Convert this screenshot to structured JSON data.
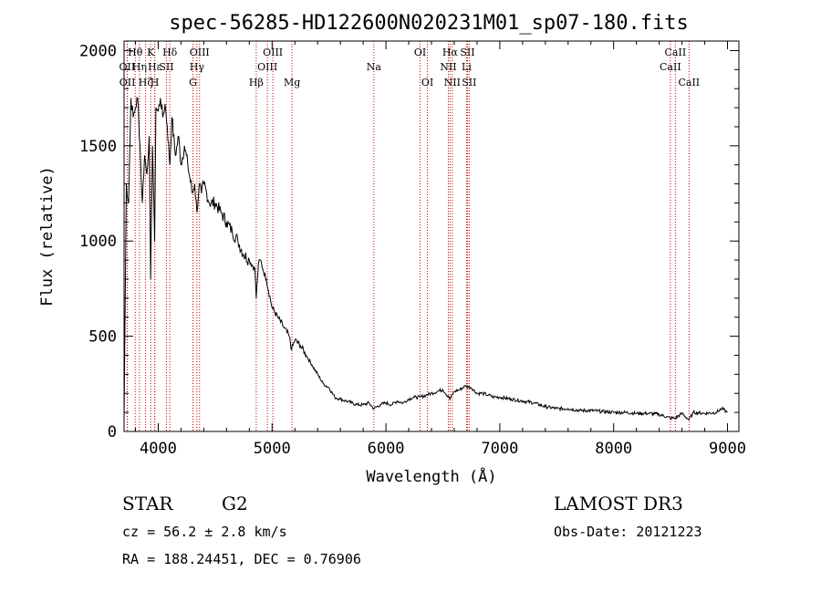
{
  "chart_data": {
    "type": "line",
    "title": "spec-56285-HD122600N020231M01_sp07-180.fits",
    "xlabel": "Wavelength (Å)",
    "ylabel": "Flux (relative)",
    "xlim": [
      3700,
      9100
    ],
    "ylim": [
      0,
      2050
    ],
    "xticks": [
      4000,
      5000,
      6000,
      7000,
      8000,
      9000
    ],
    "yticks": [
      0,
      500,
      1000,
      1500,
      2000
    ],
    "grid": false,
    "series": [
      {
        "x": [
          3700,
          3720,
          3740,
          3760,
          3780,
          3800,
          3820,
          3840,
          3860,
          3880,
          3900,
          3920,
          3933,
          3950,
          3968,
          3980,
          4000,
          4020,
          4040,
          4060,
          4080,
          4102,
          4120,
          4150,
          4180,
          4200,
          4230,
          4260,
          4300,
          4320,
          4340,
          4360,
          4380,
          4400,
          4450,
          4500,
          4550,
          4600,
          4650,
          4700,
          4750,
          4800,
          4850,
          4861,
          4880,
          4900,
          4920,
          4950,
          5000,
          5050,
          5100,
          5150,
          5172,
          5200,
          5250,
          5300,
          5350,
          5400,
          5450,
          5500,
          5550,
          5600,
          5650,
          5700,
          5750,
          5800,
          5850,
          5893,
          5950,
          6000,
          6050,
          6100,
          6150,
          6200,
          6250,
          6300,
          6350,
          6400,
          6450,
          6500,
          6563,
          6600,
          6650,
          6700,
          6750,
          6800,
          6850,
          6900,
          6950,
          7000,
          7100,
          7200,
          7300,
          7400,
          7500,
          7600,
          7700,
          7800,
          7900,
          8000,
          8100,
          8200,
          8300,
          8400,
          8498,
          8542,
          8600,
          8662,
          8700,
          8800,
          8900,
          8950,
          9000
        ],
        "y": [
          50,
          1300,
          1200,
          1750,
          1650,
          1700,
          1750,
          1500,
          1200,
          1450,
          1350,
          1550,
          800,
          1500,
          1000,
          1700,
          1680,
          1750,
          1650,
          1720,
          1600,
          1400,
          1650,
          1450,
          1550,
          1400,
          1500,
          1400,
          1250,
          1300,
          1150,
          1300,
          1250,
          1300,
          1200,
          1200,
          1150,
          1100,
          1050,
          1000,
          930,
          900,
          850,
          700,
          880,
          900,
          850,
          800,
          650,
          600,
          550,
          500,
          430,
          480,
          450,
          400,
          350,
          300,
          250,
          230,
          180,
          170,
          160,
          150,
          140,
          140,
          150,
          120,
          140,
          150,
          140,
          160,
          150,
          170,
          180,
          180,
          190,
          200,
          210,
          220,
          170,
          210,
          220,
          240,
          230,
          200,
          200,
          190,
          180,
          180,
          170,
          160,
          150,
          130,
          120,
          120,
          110,
          110,
          105,
          100,
          100,
          95,
          95,
          90,
          70,
          70,
          95,
          60,
          100,
          95,
          100,
          120,
          100
        ]
      }
    ],
    "lines": [
      {
        "label": "Hθ",
        "wl": 3798,
        "row": 0
      },
      {
        "label": "OII",
        "wl": 3727,
        "row": 1
      },
      {
        "label": "OII",
        "wl": 3729,
        "row": 2
      },
      {
        "label": "Hη",
        "wl": 3835,
        "row": 1
      },
      {
        "label": "Hζ",
        "wl": 3889,
        "row": 2
      },
      {
        "label": "K",
        "wl": 3934,
        "row": 0
      },
      {
        "label": "H",
        "wl": 3969,
        "row": 2
      },
      {
        "label": "Hε",
        "wl": 3970,
        "row": 1
      },
      {
        "label": "Hδ",
        "wl": 4102,
        "row": 0
      },
      {
        "label": "SII",
        "wl": 4072,
        "row": 1
      },
      {
        "label": "OIII",
        "wl": 4363,
        "row": 0
      },
      {
        "label": "Hγ",
        "wl": 4340,
        "row": 1
      },
      {
        "label": "G",
        "wl": 4305,
        "row": 2
      },
      {
        "label": "Hβ",
        "wl": 4861,
        "row": 2
      },
      {
        "label": "OIII",
        "wl": 5007,
        "row": 0
      },
      {
        "label": "OIII",
        "wl": 4959,
        "row": 1
      },
      {
        "label": "Mg",
        "wl": 5175,
        "row": 2
      },
      {
        "label": "Na",
        "wl": 5894,
        "row": 1
      },
      {
        "label": "OI",
        "wl": 6300,
        "row": 0
      },
      {
        "label": "OI",
        "wl": 6364,
        "row": 2
      },
      {
        "label": "Hα",
        "wl": 6563,
        "row": 0
      },
      {
        "label": "NII",
        "wl": 6548,
        "row": 1
      },
      {
        "label": "NII",
        "wl": 6583,
        "row": 2
      },
      {
        "label": "SII",
        "wl": 6716,
        "row": 0
      },
      {
        "label": "Li",
        "wl": 6708,
        "row": 1
      },
      {
        "label": "SII",
        "wl": 6731,
        "row": 2
      },
      {
        "label": "CaII",
        "wl": 8542,
        "row": 0
      },
      {
        "label": "CaII",
        "wl": 8498,
        "row": 1
      },
      {
        "label": "CaII",
        "wl": 8662,
        "row": 2
      }
    ]
  },
  "info": {
    "class": "STAR",
    "subclass": "G2",
    "survey": "LAMOST DR3",
    "cz": "cz = 56.2 ± 2.8 km/s",
    "obsdate": "Obs-Date: 20121223",
    "radec": "RA = 188.24451, DEC =    0.76906"
  },
  "colors": {
    "line_marker": "#cc0000",
    "spectrum": "#000000"
  }
}
